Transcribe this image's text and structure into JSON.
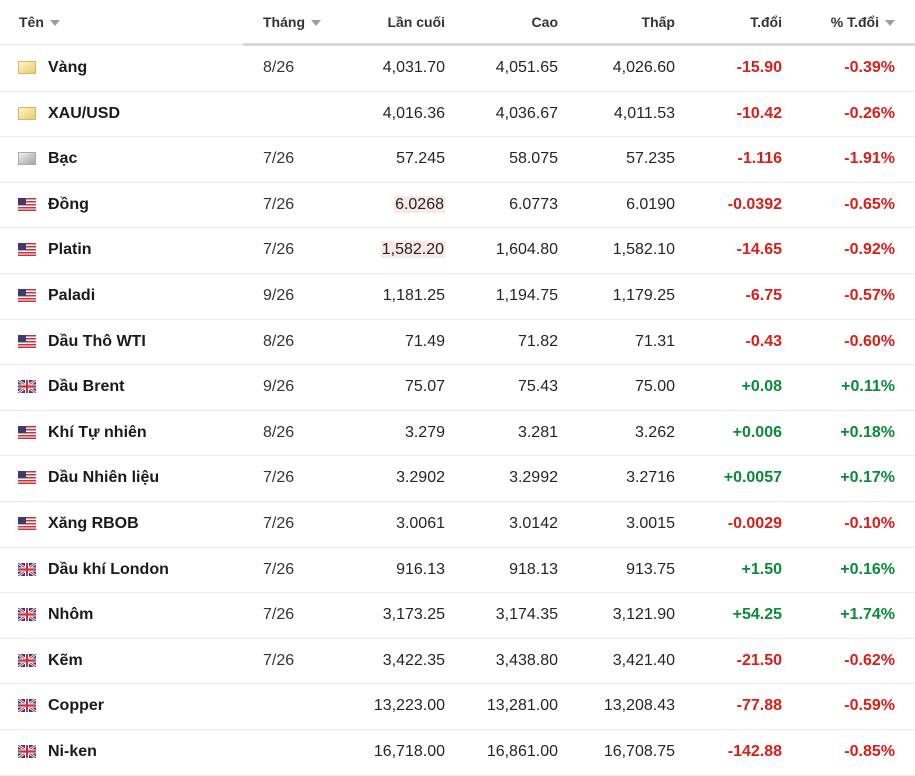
{
  "table": {
    "header": [
      "Tên",
      "Tháng",
      "Lần cuối",
      "Cao",
      "Thấp",
      "T.đổi",
      "% T.đổi"
    ],
    "rows": [
      [
        "Vàng",
        "8/26",
        "4,031.70",
        "4,051.65",
        "4,026.60",
        "-15.90",
        "-0.39%"
      ],
      [
        "XAU/USD",
        null,
        "4,016.36",
        "4,036.67",
        "4,011.53",
        "-10.42",
        "-0.26%"
      ],
      [
        "Bạc",
        "7/26",
        "57.245",
        "58.075",
        "57.235",
        "-1.116",
        "-1.91%"
      ],
      [
        "Đồng",
        "7/26",
        "6.0268",
        "6.0773",
        "6.0190",
        "-0.0392",
        "-0.65%"
      ],
      [
        "Platin",
        "7/26",
        "1,582.20",
        "1,604.80",
        "1,582.10",
        "-14.65",
        "-0.92%"
      ],
      [
        "Paladi",
        "9/26",
        "1,181.25",
        "1,194.75",
        "1,179.25",
        "-6.75",
        "-0.57%"
      ],
      [
        "Dầu Thô WTI",
        "8/26",
        "71.49",
        "71.82",
        "71.31",
        "-0.43",
        "-0.60%"
      ],
      [
        "Dầu Brent",
        "9/26",
        "75.07",
        "75.43",
        "75.00",
        "+0.08",
        "+0.11%"
      ],
      [
        "Khí Tự nhiên",
        "8/26",
        "3.279",
        "3.281",
        "3.262",
        "+0.006",
        "+0.18%"
      ],
      [
        "Dầu Nhiên liệu",
        "7/26",
        "3.2902",
        "3.2992",
        "3.2716",
        "+0.0057",
        "+0.17%"
      ],
      [
        "Xăng RBOB",
        "7/26",
        "3.0061",
        "3.0142",
        "3.0015",
        "-0.0029",
        "-0.10%"
      ],
      [
        "Dầu khí London",
        "7/26",
        "916.13",
        "918.13",
        "913.75",
        "+1.50",
        "+0.16%"
      ],
      [
        "Nhôm",
        "7/26",
        "3,173.25",
        "3,174.35",
        "3,121.90",
        "+54.25",
        "+1.74%"
      ],
      [
        "Kẽm",
        "7/26",
        "3,422.35",
        "3,438.80",
        "3,421.40",
        "-21.50",
        "-0.62%"
      ],
      [
        "Copper",
        null,
        "13,223.00",
        "13,281.00",
        "13,208.43",
        "-77.88",
        "-0.59%"
      ],
      [
        "Ni-ken",
        null,
        "16,718.00",
        "16,861.00",
        "16,708.75",
        "-142.88",
        "-0.85%"
      ]
    ]
  }
}
